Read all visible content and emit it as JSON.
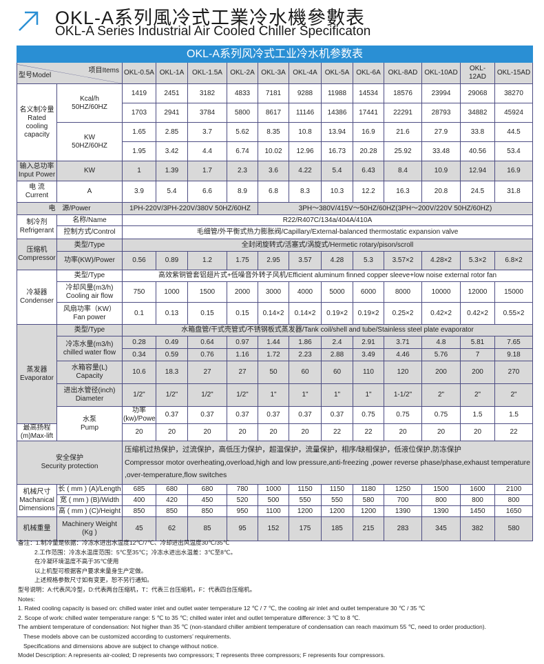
{
  "title_cn": "OKL-A系列風冷式工業冷水機參數表",
  "title_en": "OKL-A Series Industrial Air Cooled Chiller Specificaton",
  "accent": "#2a8fd4",
  "table": {
    "title": "OKL-A系列风冷式工业冷水机参数表",
    "header": {
      "model_label": "型号Model",
      "items_label": "项目Items",
      "models": [
        "OKL-0.5A",
        "OKL-1A",
        "OKL-1.5A",
        "OKL-2A",
        "OKL-3A",
        "OKL-4A",
        "OKL-5A",
        "OKL-6A",
        "OKL-8AD",
        "OKL-10AD",
        "OKL-12AD",
        "OKL-15AD"
      ]
    },
    "cooling": {
      "label_cn": "名义制冷量",
      "label_en": "Rated cooling capacity",
      "kcal_unit": "Kcal/h",
      "kcal_hz": "50HZ/60HZ",
      "kcal_50": [
        "1419",
        "2451",
        "3182",
        "4833",
        "7181",
        "9288",
        "11988",
        "14534",
        "18576",
        "23994",
        "29068",
        "38270"
      ],
      "kcal_60": [
        "1703",
        "2941",
        "3784",
        "5800",
        "8617",
        "11146",
        "14386",
        "17441",
        "22291",
        "28793",
        "34882",
        "45924"
      ],
      "kw_unit": "KW",
      "kw_hz": "50HZ/60HZ",
      "kw_50": [
        "1.65",
        "2.85",
        "3.7",
        "5.62",
        "8.35",
        "10.8",
        "13.94",
        "16.9",
        "21.6",
        "27.9",
        "33.8",
        "44.5"
      ],
      "kw_60": [
        "1.95",
        "3.42",
        "4.4",
        "6.74",
        "10.02",
        "12.96",
        "16.73",
        "20.28",
        "25.92",
        "33.48",
        "40.56",
        "53.4"
      ]
    },
    "input_power": {
      "label_cn": "输入总功率",
      "label_en": "Input Power",
      "unit": "KW",
      "values": [
        "1",
        "1.39",
        "1.7",
        "2.3",
        "3.6",
        "4.22",
        "5.4",
        "6.43",
        "8.4",
        "10.9",
        "12.94",
        "16.9"
      ]
    },
    "current": {
      "label_cn": "电 流",
      "label_en": "Current",
      "unit": "A",
      "values": [
        "3.9",
        "5.4",
        "6.6",
        "8.9",
        "6.8",
        "8.3",
        "10.3",
        "12.2",
        "16.3",
        "20.8",
        "24.5",
        "31.8"
      ]
    },
    "power_supply": {
      "label": "电　源/Power",
      "value_small": "1PH-220V/3PH-220V/380V 50HZ/60HZ",
      "value_large": "3PH～380V/415V～50HZ/60HZ(3PH～200V/220V  50HZ/60HZ)"
    },
    "refrigerant": {
      "label_cn": "制冷剂",
      "label_en": "Refrigerant",
      "name_label": "名称/Name",
      "name_value": "R22/R407C/134a/404A/410A",
      "control_label": "控制方式/Control",
      "control_value": "毛细管/外平衡式热力膨胀阀/Capillary/External-balanced thermostatic expansion valve"
    },
    "compressor": {
      "label_cn": "压缩机",
      "label_en": "Compressor",
      "type_label": "类型/Type",
      "type_value": "全封闭旋转式/活塞式/涡旋式/Hermetic rotary/pison/scroll",
      "power_label": "功率(KW)/Power",
      "power_values": [
        "0.56",
        "0.89",
        "1.2",
        "1.75",
        "2.95",
        "3.57",
        "4.28",
        "5.3",
        "3.57×2",
        "4.28×2",
        "5.3×2",
        "6.8×2"
      ]
    },
    "condenser": {
      "label_cn": "冷凝器",
      "label_en": "Condenser",
      "type_label": "类型/Type",
      "type_value": "高效紫铜管套铝翅片式+低噪音外转子风机/Efficient aluminum finned copper sleeve+low noise external rotor fan",
      "airflow_label_cn": "冷却风量(m3/h)",
      "airflow_label_en": "Cooling air flow",
      "airflow_values": [
        "750",
        "1000",
        "1500",
        "2000",
        "3000",
        "4000",
        "5000",
        "6000",
        "8000",
        "10000",
        "12000",
        "15000"
      ],
      "fan_label_cn": "风扇功率（KW）",
      "fan_label_en": "Fan power",
      "fan_values": [
        "0.1",
        "0.13",
        "0.15",
        "0.15",
        "0.14×2",
        "0.14×2",
        "0.19×2",
        "0.19×2",
        "0.25×2",
        "0.42×2",
        "0.42×2",
        "0.55×2"
      ]
    },
    "evaporator": {
      "label_cn": "蒸发器",
      "label_en": "Evaporator",
      "type_label": "类型/Type",
      "type_value": "水箱盘管/干式壳管式/不锈钢板式蒸发器/Tank coil/shell and tube/Stainless steel plate evaporator",
      "flow_label_cn": "冷冻水量(m3/h)",
      "flow_label_en": "chilled water flow",
      "flow_50": [
        "0.28",
        "0.49",
        "0.64",
        "0.97",
        "1.44",
        "1.86",
        "2.4",
        "2.91",
        "3.71",
        "4.8",
        "5.81",
        "7.65"
      ],
      "flow_60": [
        "0.34",
        "0.59",
        "0.76",
        "1.16",
        "1.72",
        "2.23",
        "2.88",
        "3.49",
        "4.46",
        "5.76",
        "7",
        "9.18"
      ],
      "capacity_label_cn": "水箱容量(L)",
      "capacity_label_en": "Capacity",
      "capacity_values": [
        "10.6",
        "18.3",
        "27",
        "27",
        "50",
        "60",
        "60",
        "110",
        "120",
        "200",
        "200",
        "270"
      ],
      "diameter_label_cn": "进出水管径(inch)",
      "diameter_label_en": "Diameter",
      "diameter_values": [
        "1/2\"",
        "1/2\"",
        "1/2\"",
        "1/2\"",
        "1\"",
        "1\"",
        "1\"",
        "1\"",
        "1-1/2\"",
        "2\"",
        "2\"",
        "2\""
      ]
    },
    "pump": {
      "label_cn": "水泵",
      "label_en": "Pump",
      "power_label": "功率(kw)/Power",
      "power_values": [
        "0.37",
        "0.37",
        "0.37",
        "0.37",
        "0.37",
        "0.37",
        "0.75",
        "0.75",
        "0.75",
        "1.5",
        "1.5",
        "2.2"
      ],
      "lift_label": "最高扬程(m)Max-lift",
      "lift_values": [
        "20",
        "20",
        "20",
        "20",
        "20",
        "20",
        "22",
        "22",
        "20",
        "20",
        "20",
        "22"
      ]
    },
    "protection": {
      "label_cn": "安全保护",
      "label_en": "Security protection",
      "text_cn": "压缩机过热保护，过流保护，高低压力保护，超温保护，流量保护，相序/缺相保护，低液位保护,防冻保护",
      "text_en": "Compressor motor overheating,overload,high and low pressure,anti-freezing ,power reverse phase/phase,exhaust temperature ,over-temperature,flow switches"
    },
    "dimensions": {
      "label_cn": "机械尺寸",
      "label_en1": "Machanical",
      "label_en2": "Dimensions",
      "length_label": "长 ( mm ) (A)/Length",
      "length": [
        "685",
        "680",
        "680",
        "780",
        "1000",
        "1150",
        "1150",
        "1180",
        "1250",
        "1500",
        "1600",
        "2100"
      ],
      "width_label": "宽 ( mm ) (B)/Width",
      "width": [
        "400",
        "420",
        "450",
        "520",
        "500",
        "550",
        "550",
        "580",
        "700",
        "800",
        "800",
        "800"
      ],
      "height_label": "高 ( mm ) (C)/Height",
      "height": [
        "850",
        "850",
        "850",
        "950",
        "1100",
        "1200",
        "1200",
        "1200",
        "1390",
        "1390",
        "1450",
        "1650"
      ]
    },
    "weight": {
      "label_cn": "机械重量",
      "label_en1": "Machinery Weight",
      "label_en2": "(Kg )",
      "values": [
        "45",
        "62",
        "85",
        "95",
        "152",
        "175",
        "185",
        "215",
        "283",
        "345",
        "382",
        "580"
      ]
    }
  },
  "notes": {
    "cn": [
      "备注：1.制冷量是依据：冷冻水进出水温度12℃/7℃、冷却进出风温度30℃/35℃",
      "2.工作范围：冷冻水温度范围：5℃至35℃；冷冻水进出水温差：3℃至8℃。",
      "在冷凝环境温度不高于35℃使用",
      "以上机型可根据客户要求来量身生产定做。",
      "上述规格参数尺寸如有变更，恕不另行通知。",
      "型号说明：A:代表风冷型，D:代表两台压缩机，T：代表三台压缩机，F：代表四台压缩机。"
    ],
    "en": [
      "Notes:",
      "1. Rated cooling capacity is based on: chilled water inlet and outlet water temperature 12 ℃ / 7 ℃, the cooling air inlet and outlet temperature 30 ℃ / 35 ℃",
      "2. Scope of work: chilled water temperature range: 5 ℃ to 35 ℃; chilled water inlet and outlet temperature difference: 3 ℃ to 8 ℃.",
      "The ambient temperature of condensation: Not higher than 35 ℃ (non-standard chiller ambient temperature of condensation can reach maximum 55 ℃, need to order production).",
      "These models above can be customized according to customers’  requirements.",
      "Specifications and dimensions above are subject to change without notice.",
      "Model Description: A represents air-cooled; D represents two compressors; T represents three compressors; F represents four compressors."
    ]
  }
}
